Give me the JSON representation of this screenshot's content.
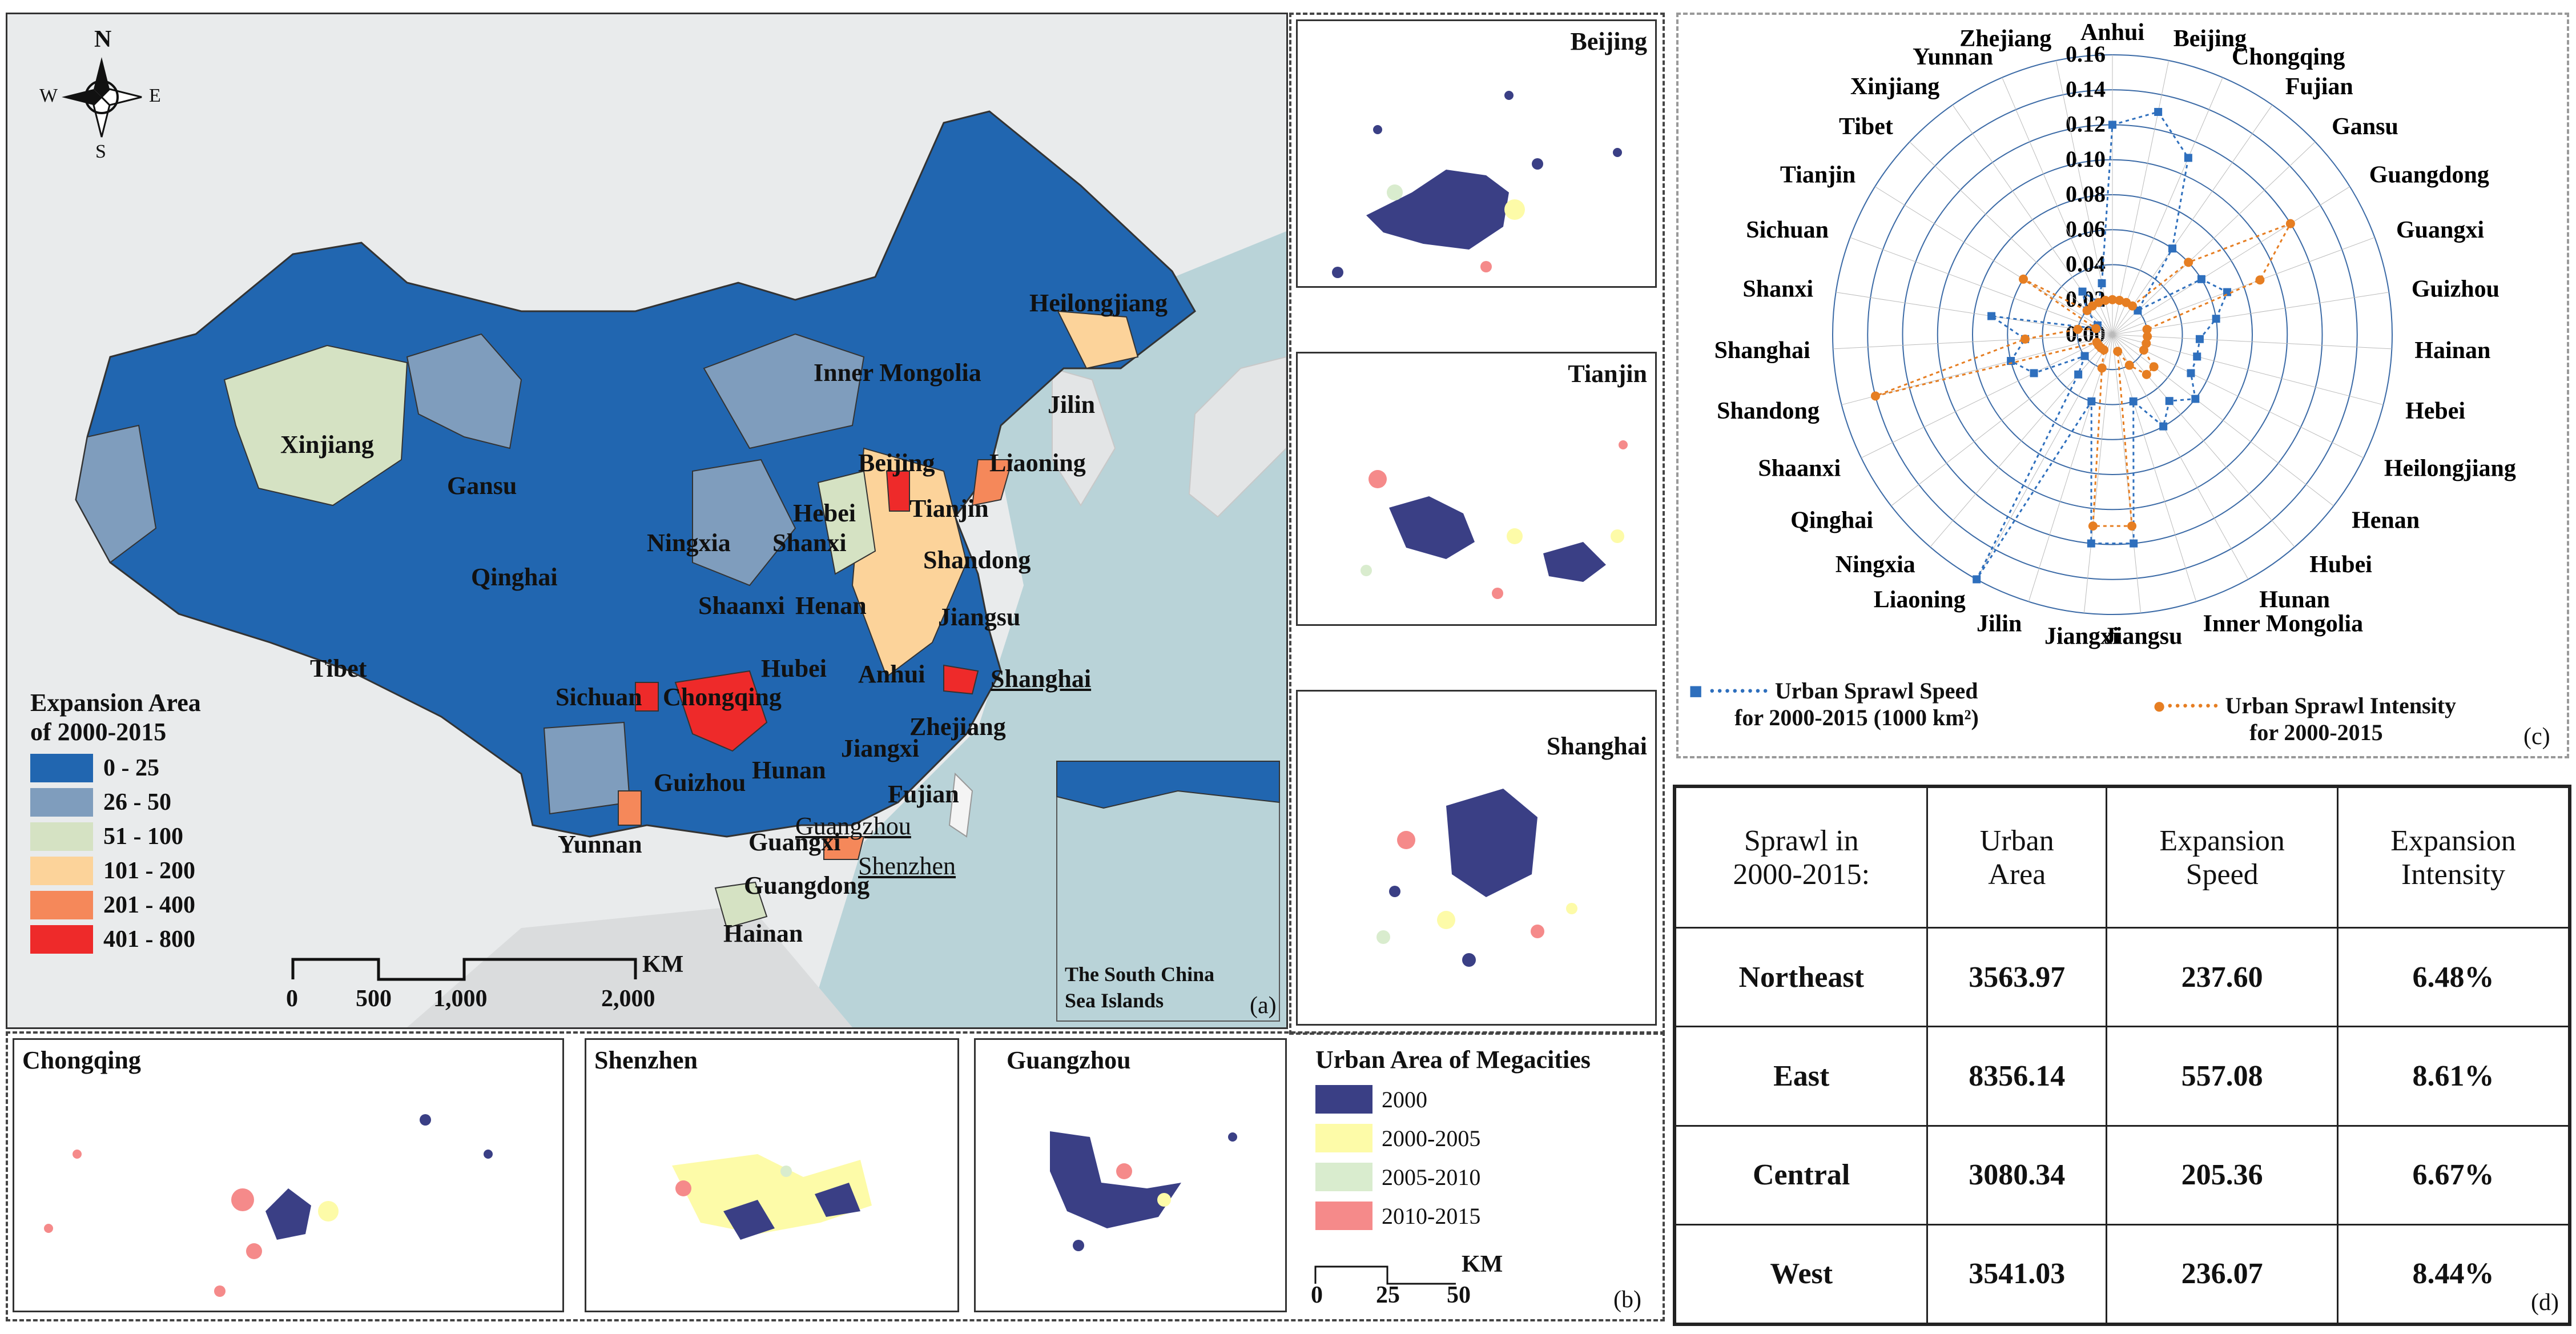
{
  "panel_a": {
    "compass": {
      "n": "N",
      "s": "S",
      "e": "E",
      "w": "W"
    },
    "provinces": [
      "Heilongjiang",
      "Inner Mongolia",
      "Jilin",
      "Liaoning",
      "Beijing",
      "Tianjin",
      "Hebei",
      "Xinjiang",
      "Gansu",
      "Ningxia",
      "Shanxi",
      "Shandong",
      "Qinghai",
      "Shaanxi",
      "Henan",
      "Jiangsu",
      "Tibet",
      "Sichuan",
      "Chongqing",
      "Hubei",
      "Anhui",
      "Shanghai",
      "Zhejiang",
      "Jiangxi",
      "Hunan",
      "Guizhou",
      "Fujian",
      "Yunnan",
      "Guangxi",
      "Guangzhou",
      "Shenzhen",
      "Guangdong",
      "Hainan"
    ],
    "legend_title_1": "Expansion Area",
    "legend_title_2": "of 2000-2015",
    "legend": [
      {
        "label": "0 - 25",
        "color": "#2166b0"
      },
      {
        "label": "26 - 50",
        "color": "#7f9dbd"
      },
      {
        "label": "51 - 100",
        "color": "#d5e2c3"
      },
      {
        "label": "101 - 200",
        "color": "#fcd39a"
      },
      {
        "label": "201 - 400",
        "color": "#f5885a"
      },
      {
        "label": "401 - 800",
        "color": "#ee2a2a"
      }
    ],
    "scale_ticks": [
      "0",
      "500",
      "1,000",
      "2,000"
    ],
    "scale_unit": "KM",
    "inset_label_1": "The South China",
    "inset_label_2": "Sea Islands",
    "tag": "(a)"
  },
  "panel_b": {
    "cities": [
      "Beijing",
      "Tianjin",
      "Shanghai",
      "Chongqing",
      "Shenzhen",
      "Guangzhou"
    ],
    "legend_title": "Urban Area of Megacities",
    "legend": [
      {
        "label": "2000",
        "color": "#3a3f85"
      },
      {
        "label": "2000-2005",
        "color": "#fdfba8"
      },
      {
        "label": "2005-2010",
        "color": "#d9ecce"
      },
      {
        "label": "2010-2015",
        "color": "#f58a8a"
      }
    ],
    "scale_ticks": [
      "0",
      "25",
      "50"
    ],
    "scale_unit": "KM",
    "tag": "(b)"
  },
  "panel_c": {
    "axis_ticks": [
      "0.00",
      "0.02",
      "0.04",
      "0.06",
      "0.08",
      "0.10",
      "0.12",
      "0.14",
      "0.16"
    ],
    "legend_speed_1": "Urban Sprawl Speed",
    "legend_speed_2": "for 2000-2015 (1000 km²)",
    "legend_intensity_1": "Urban Sprawl Intensity",
    "legend_intensity_2": "for 2000-2015",
    "tag": "(c)"
  },
  "chart_data": {
    "type": "radar",
    "categories": [
      "Anhui",
      "Beijing",
      "Chongqing",
      "Fujian",
      "Gansu",
      "Guangdong",
      "Guangxi",
      "Guizhou",
      "Hainan",
      "Hebei",
      "Heilongjiang",
      "Henan",
      "Hubei",
      "Hunan",
      "Inner Mongolia",
      "Jiangsu",
      "Jiangxi",
      "Jilin",
      "Liaoning",
      "Ningxia",
      "Qinghai",
      "Shaanxi",
      "Shandong",
      "Shanghai",
      "Shanxi",
      "Sichuan",
      "Tianjin",
      "Tibet",
      "Xinjiang",
      "Yunnan",
      "Zhejiang"
    ],
    "rlim": [
      0,
      0.16
    ],
    "series": [
      {
        "name": "Urban Sprawl Speed for 2000-2015 (1000 km²)",
        "color": "#2e6fbd",
        "values": [
          0.12,
          0.13,
          0.11,
          0.06,
          0.02,
          0.06,
          0.07,
          0.06,
          0.05,
          0.05,
          0.05,
          0.06,
          0.05,
          0.06,
          0.04,
          0.12,
          0.12,
          0.04,
          0.16,
          0.03,
          0.02,
          0.05,
          0.06,
          0.05,
          0.07,
          0.01,
          0.01,
          0.02,
          0.03,
          0.02,
          0.03
        ]
      },
      {
        "name": "Urban Sprawl Intensity for 2000-2015",
        "color": "#e67e22",
        "values": [
          0.02,
          0.02,
          0.02,
          0.02,
          0.06,
          0.12,
          0.09,
          0.02,
          0.02,
          0.02,
          0.02,
          0.03,
          0.03,
          0.02,
          0.01,
          0.11,
          0.11,
          0.02,
          0.01,
          0.01,
          0.01,
          0.01,
          0.14,
          0.05,
          0.02,
          0.01,
          0.06,
          0.02,
          0.02,
          0.02,
          0.02
        ]
      }
    ]
  },
  "panel_d": {
    "headers": [
      [
        "Sprawl in",
        "2000-2015:"
      ],
      [
        "Urban",
        "Area"
      ],
      [
        "Expansion",
        "Speed"
      ],
      [
        "Expansion",
        "Intensity"
      ]
    ],
    "rows": [
      [
        "Northeast",
        "3563.97",
        "237.60",
        "6.48%"
      ],
      [
        "East",
        "8356.14",
        "557.08",
        "8.61%"
      ],
      [
        "Central",
        "3080.34",
        "205.36",
        "6.67%"
      ],
      [
        "West",
        "3541.03",
        "236.07",
        "8.44%"
      ]
    ],
    "tag": "(d)"
  }
}
